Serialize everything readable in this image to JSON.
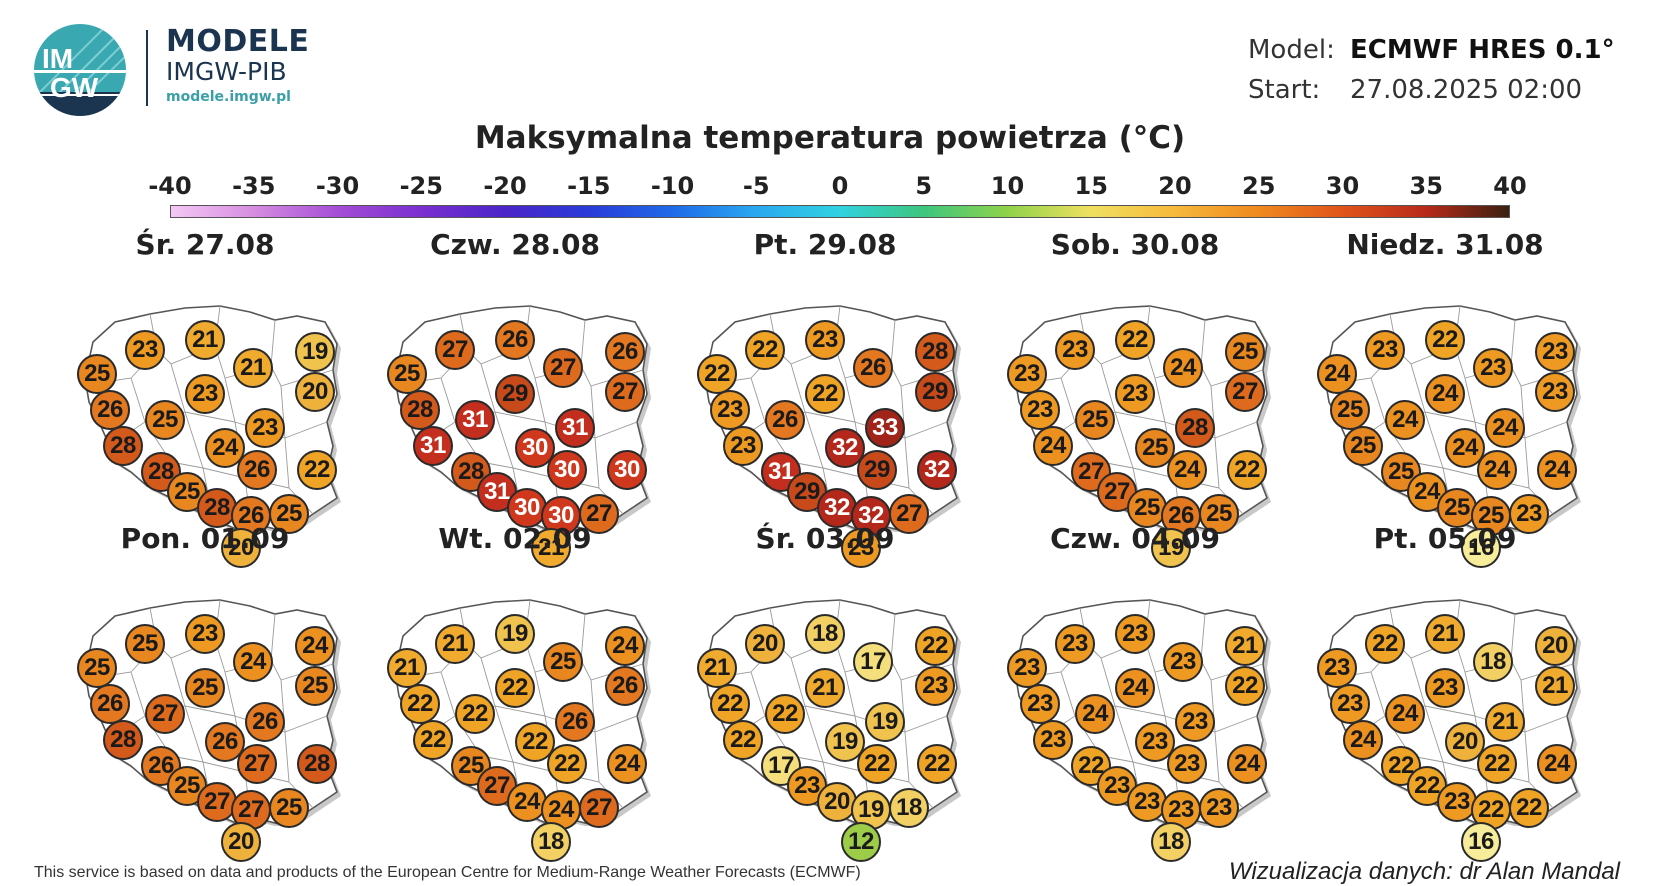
{
  "header": {
    "logo_text_top": "IM",
    "logo_text_bottom": "GW",
    "brand_title": "MODELE",
    "brand_subtitle": "IMGW-PIB",
    "brand_url": "modele.imgw.pl",
    "model_label": "Model:",
    "model_value": "ECMWF HRES 0.1°",
    "start_label": "Start:",
    "start_value": "27.08.2025 02:00"
  },
  "title": "Maksymalna temperatura powietrza (°C)",
  "scale": {
    "ticks": [
      "-40",
      "-35",
      "-30",
      "-25",
      "-20",
      "-15",
      "-10",
      "-5",
      "0",
      "5",
      "10",
      "15",
      "20",
      "25",
      "30",
      "35",
      "40"
    ],
    "colors": {
      "t12": "#9ccc48",
      "t16": "#f6ec9a",
      "t17": "#f4df7c",
      "t18": "#f2d064",
      "t19": "#f0c24e",
      "t20": "#eeb23c",
      "t21": "#f0aa2e",
      "t22": "#f0a426",
      "t23": "#ee9a22",
      "t24": "#ec9020",
      "t25": "#e88620",
      "t26": "#e47820",
      "t27": "#de6a1e",
      "t28": "#d45a1c",
      "t29": "#c84a1a",
      "t30": "#d0381e",
      "t31": "#c42e1e",
      "t32": "#b4281c",
      "t33": "#a0241a"
    }
  },
  "panels": [
    {
      "date": "Śr. 27.08",
      "temps": [
        "25",
        "23",
        "21",
        "21",
        "19",
        "26",
        "25",
        "23",
        "20",
        "28",
        "24",
        "23",
        "26",
        "22",
        "28",
        "25",
        "28",
        "26",
        "25",
        "20"
      ]
    },
    {
      "date": "Czw. 28.08",
      "temps": [
        "25",
        "27",
        "26",
        "27",
        "26",
        "28",
        "31",
        "29",
        "27",
        "31",
        "30",
        "31",
        "30",
        "30",
        "28",
        "31",
        "30",
        "30",
        "27",
        "21"
      ]
    },
    {
      "date": "Pt. 29.08",
      "temps": [
        "22",
        "22",
        "23",
        "26",
        "28",
        "23",
        "26",
        "22",
        "29",
        "23",
        "32",
        "33",
        "29",
        "32",
        "31",
        "29",
        "32",
        "32",
        "27",
        "23"
      ]
    },
    {
      "date": "Sob. 30.08",
      "temps": [
        "23",
        "23",
        "22",
        "24",
        "25",
        "23",
        "25",
        "23",
        "27",
        "24",
        "25",
        "28",
        "24",
        "22",
        "27",
        "27",
        "25",
        "26",
        "25",
        "19"
      ]
    },
    {
      "date": "Niedz. 31.08",
      "temps": [
        "24",
        "23",
        "22",
        "23",
        "23",
        "25",
        "24",
        "24",
        "23",
        "25",
        "24",
        "24",
        "24",
        "24",
        "25",
        "24",
        "25",
        "25",
        "23",
        "16"
      ]
    },
    {
      "date": "Pon. 01.09",
      "temps": [
        "25",
        "25",
        "23",
        "24",
        "24",
        "26",
        "27",
        "25",
        "25",
        "28",
        "26",
        "26",
        "27",
        "28",
        "26",
        "25",
        "27",
        "27",
        "25",
        "20"
      ]
    },
    {
      "date": "Wt. 02.09",
      "temps": [
        "21",
        "21",
        "19",
        "25",
        "24",
        "22",
        "22",
        "22",
        "26",
        "22",
        "22",
        "26",
        "22",
        "24",
        "25",
        "27",
        "24",
        "24",
        "27",
        "18"
      ]
    },
    {
      "date": "Śr. 03.09",
      "temps": [
        "21",
        "20",
        "18",
        "17",
        "22",
        "22",
        "22",
        "21",
        "23",
        "22",
        "19",
        "19",
        "22",
        "22",
        "17",
        "23",
        "20",
        "19",
        "18",
        "12"
      ]
    },
    {
      "date": "Czw. 04.09",
      "temps": [
        "23",
        "23",
        "23",
        "23",
        "21",
        "23",
        "24",
        "24",
        "22",
        "23",
        "23",
        "23",
        "23",
        "24",
        "22",
        "23",
        "23",
        "23",
        "23",
        "18"
      ]
    },
    {
      "date": "Pt. 05.09",
      "temps": [
        "23",
        "22",
        "21",
        "18",
        "20",
        "23",
        "24",
        "23",
        "21",
        "24",
        "20",
        "21",
        "22",
        "24",
        "22",
        "22",
        "23",
        "22",
        "22",
        "16"
      ]
    }
  ],
  "footer": {
    "credit_left": "This service is based on data and products of the European Centre for Medium-Range Weather Forecasts (ECMWF)",
    "credit_right": "Wizualizacja danych: dr Alan Mandal"
  }
}
